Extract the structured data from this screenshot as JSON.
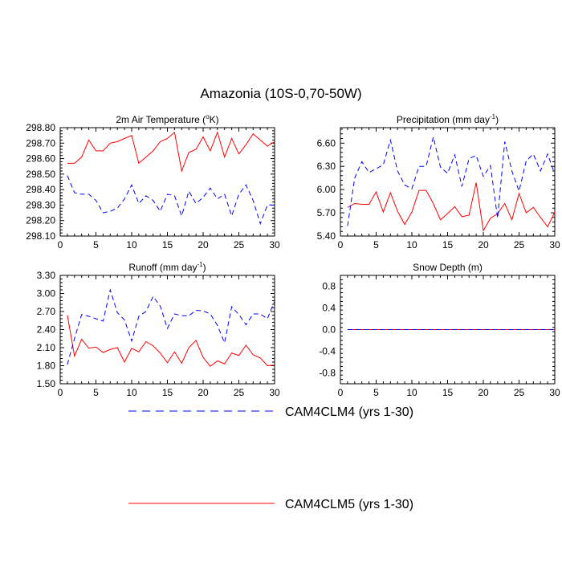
{
  "title": "Amazonia (10S-0,70-50W)",
  "colors": {
    "clm4": "#0000ff",
    "clm5": "#ff0000",
    "axis": "#000000"
  },
  "legend": [
    {
      "label": "CAM4CLM4 (yrs 1-30)",
      "style": "dashed",
      "color": "#0000ff"
    },
    {
      "label": "CAM4CLM5 (yrs 1-30)",
      "style": "solid",
      "color": "#ff0000"
    }
  ],
  "chart_data": [
    {
      "type": "line",
      "title": "2m Air Temperature (°K)",
      "title_base": "2m Air Temperature (",
      "title_sup": "o",
      "title_end": "K)",
      "xlim": [
        0,
        30
      ],
      "ylim": [
        298.1,
        298.8
      ],
      "xticks": [
        "0",
        "5",
        "10",
        "15",
        "20",
        "25",
        "30"
      ],
      "yticks": [
        "298.10",
        "298.20",
        "298.30",
        "298.40",
        "298.50",
        "298.60",
        "298.70",
        "298.80"
      ],
      "x": [
        1,
        2,
        3,
        4,
        5,
        6,
        7,
        8,
        9,
        10,
        11,
        12,
        13,
        14,
        15,
        16,
        17,
        18,
        19,
        20,
        21,
        22,
        23,
        24,
        25,
        26,
        27,
        28,
        29,
        30
      ],
      "series": [
        {
          "name": "CAM4CLM4 (yrs 1-30)",
          "values": [
            298.49,
            298.38,
            298.37,
            298.37,
            298.33,
            298.25,
            298.26,
            298.28,
            298.34,
            298.43,
            298.31,
            298.36,
            298.33,
            298.26,
            298.37,
            298.36,
            298.23,
            298.39,
            298.31,
            298.35,
            298.41,
            298.34,
            298.37,
            298.23,
            298.37,
            298.43,
            298.33,
            298.18,
            298.3,
            298.3
          ]
        },
        {
          "name": "CAM4CLM5 (yrs 1-30)",
          "values": [
            298.57,
            298.57,
            298.61,
            298.72,
            298.65,
            298.65,
            298.7,
            298.71,
            298.73,
            298.75,
            298.57,
            298.61,
            298.65,
            298.71,
            298.73,
            298.77,
            298.52,
            298.64,
            298.66,
            298.74,
            298.65,
            298.77,
            298.61,
            298.73,
            298.63,
            298.69,
            298.76,
            298.72,
            298.68,
            298.71
          ]
        }
      ]
    },
    {
      "type": "line",
      "title": "Precipitation (mm day-1)",
      "title_base": "Precipitation (mm day",
      "title_sup": "-1",
      "title_end": ")",
      "xlim": [
        0,
        30
      ],
      "ylim": [
        5.4,
        6.8
      ],
      "xticks": [
        "0",
        "5",
        "10",
        "15",
        "20",
        "25",
        "30"
      ],
      "yticks": [
        "5.40",
        "5.70",
        "6.00",
        "6.30",
        "6.60"
      ],
      "x": [
        1,
        2,
        3,
        4,
        5,
        6,
        7,
        8,
        9,
        10,
        11,
        12,
        13,
        14,
        15,
        16,
        17,
        18,
        19,
        20,
        21,
        22,
        23,
        24,
        25,
        26,
        27,
        28,
        29,
        30
      ],
      "series": [
        {
          "name": "CAM4CLM4 (yrs 1-30)",
          "values": [
            5.53,
            6.15,
            6.36,
            6.22,
            6.27,
            6.32,
            6.64,
            6.24,
            6.06,
            6.01,
            6.3,
            6.3,
            6.68,
            6.29,
            6.21,
            6.45,
            6.04,
            6.4,
            6.44,
            6.17,
            6.31,
            5.63,
            6.62,
            6.24,
            5.98,
            6.37,
            6.46,
            6.24,
            6.46,
            6.2
          ]
        },
        {
          "name": "CAM4CLM5 (yrs 1-30)",
          "values": [
            5.77,
            5.82,
            5.81,
            5.81,
            5.97,
            5.71,
            5.96,
            5.72,
            5.55,
            5.71,
            5.99,
            5.99,
            5.82,
            5.61,
            5.69,
            5.78,
            5.65,
            5.67,
            6.09,
            5.47,
            5.63,
            5.69,
            5.82,
            5.61,
            5.95,
            5.7,
            5.77,
            5.64,
            5.52,
            5.71
          ]
        }
      ]
    },
    {
      "type": "line",
      "title": "Runoff (mm day-1)",
      "title_base": "Runoff (mm day",
      "title_sup": "-1",
      "title_end": ")",
      "xlim": [
        0,
        30
      ],
      "ylim": [
        1.5,
        3.3
      ],
      "xticks": [
        "0",
        "5",
        "10",
        "15",
        "20",
        "25",
        "30"
      ],
      "yticks": [
        "1.50",
        "1.80",
        "2.10",
        "2.40",
        "2.70",
        "3.00",
        "3.30"
      ],
      "x": [
        1,
        2,
        3,
        4,
        5,
        6,
        7,
        8,
        9,
        10,
        11,
        12,
        13,
        14,
        15,
        16,
        17,
        18,
        19,
        20,
        21,
        22,
        23,
        24,
        25,
        26,
        27,
        28,
        29,
        30
      ],
      "series": [
        {
          "name": "CAM4CLM4 (yrs 1-30)",
          "values": [
            1.82,
            2.25,
            2.65,
            2.62,
            2.58,
            2.54,
            3.06,
            2.68,
            2.56,
            2.21,
            2.62,
            2.7,
            2.95,
            2.79,
            2.42,
            2.66,
            2.63,
            2.63,
            2.72,
            2.71,
            2.66,
            2.47,
            2.18,
            2.78,
            2.65,
            2.48,
            2.66,
            2.66,
            2.58,
            2.87
          ]
        },
        {
          "name": "CAM4CLM5 (yrs 1-30)",
          "values": [
            2.64,
            1.96,
            2.24,
            2.09,
            2.11,
            2.02,
            2.07,
            2.1,
            1.86,
            2.09,
            2.03,
            2.2,
            2.13,
            2.01,
            1.85,
            2.03,
            1.84,
            2.1,
            2.22,
            1.94,
            1.79,
            1.88,
            1.83,
            2.01,
            1.97,
            2.14,
            1.98,
            1.93,
            1.8,
            1.81
          ]
        }
      ]
    },
    {
      "type": "line",
      "title": "Snow Depth (m)",
      "title_base": "Snow Depth (m)",
      "title_sup": "",
      "title_end": "",
      "xlim": [
        0,
        30
      ],
      "ylim": [
        -1.0,
        1.0
      ],
      "xticks": [
        "0",
        "5",
        "10",
        "15",
        "20",
        "25",
        "30"
      ],
      "yticks": [
        "-0.8",
        "-0.4",
        "0.0",
        "0.4",
        "0.8"
      ],
      "x": [
        1,
        2,
        3,
        4,
        5,
        6,
        7,
        8,
        9,
        10,
        11,
        12,
        13,
        14,
        15,
        16,
        17,
        18,
        19,
        20,
        21,
        22,
        23,
        24,
        25,
        26,
        27,
        28,
        29,
        30
      ],
      "series": [
        {
          "name": "CAM4CLM4 (yrs 1-30)",
          "values": [
            0,
            0,
            0,
            0,
            0,
            0,
            0,
            0,
            0,
            0,
            0,
            0,
            0,
            0,
            0,
            0,
            0,
            0,
            0,
            0,
            0,
            0,
            0,
            0,
            0,
            0,
            0,
            0,
            0,
            0
          ]
        },
        {
          "name": "CAM4CLM5 (yrs 1-30)",
          "values": [
            0,
            0,
            0,
            0,
            0,
            0,
            0,
            0,
            0,
            0,
            0,
            0,
            0,
            0,
            0,
            0,
            0,
            0,
            0,
            0,
            0,
            0,
            0,
            0,
            0,
            0,
            0,
            0,
            0,
            0
          ]
        }
      ]
    }
  ]
}
